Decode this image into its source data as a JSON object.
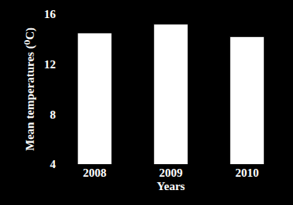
{
  "chart_data": {
    "type": "bar",
    "categories": [
      "2008",
      "2009",
      "2010"
    ],
    "values": [
      14.5,
      15.2,
      14.2
    ],
    "color": "#ffffff",
    "x_label": "Years",
    "y_label": "Mean temperatures (⁰C)",
    "ylim": [
      4,
      16
    ],
    "yticks": [
      4,
      8,
      12,
      16
    ],
    "grid": false
  }
}
